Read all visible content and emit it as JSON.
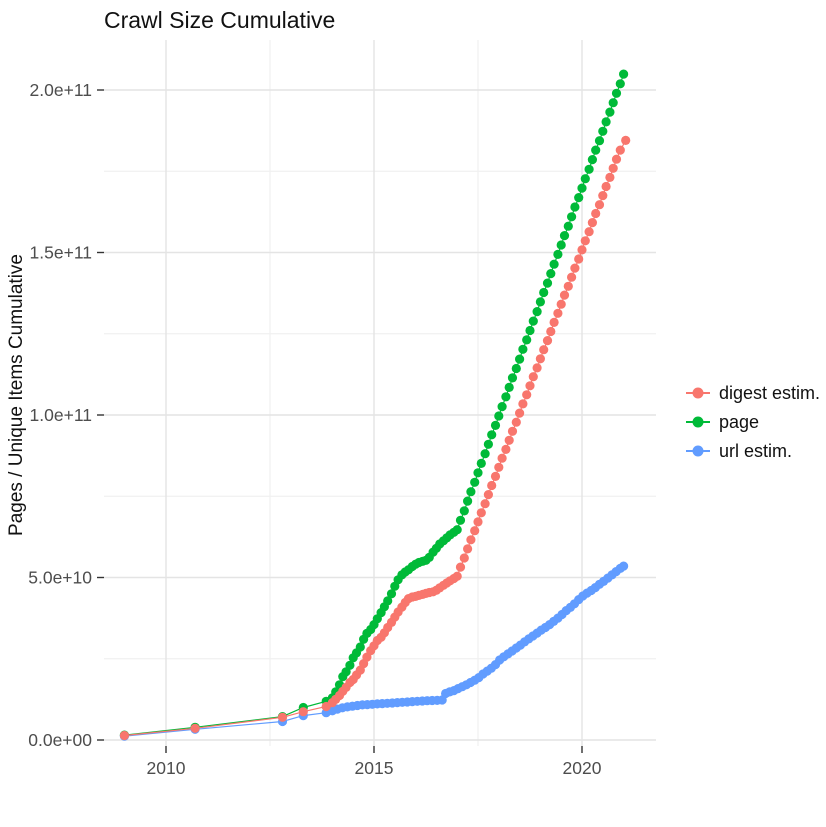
{
  "chart_data": {
    "type": "scatter",
    "marks": "points+lines",
    "title": "Crawl Size Cumulative",
    "xlabel": "",
    "ylabel": "Pages / Unique Items Cumulative",
    "legend_position": "right",
    "grid": true,
    "background": "#FFFFFF",
    "xlim": [
      2008.5,
      2021.8
    ],
    "ylim": [
      0,
      215000000000.0
    ],
    "values_unit": "1e9 (billions)",
    "x_ticks": [
      {
        "v": 2010,
        "label": "2010"
      },
      {
        "v": 2015,
        "label": "2015"
      },
      {
        "v": 2020,
        "label": "2020"
      }
    ],
    "x_minor_ticks": [
      2012.5,
      2017.5
    ],
    "y_ticks": [
      {
        "v": 0,
        "label": "0.0e+00"
      },
      {
        "v": 50,
        "label": "5.0e+10"
      },
      {
        "v": 100,
        "label": "1.0e+11"
      },
      {
        "v": 150,
        "label": "1.5e+11"
      },
      {
        "v": 200,
        "label": "2.0e+11"
      }
    ],
    "y_minor_ticks": [
      25,
      75,
      125,
      175
    ],
    "colors": {
      "grid_major": "#E4E4E4",
      "grid_minor": "#F0F0F0",
      "tick_mark": "#333333",
      "tick_label": "#4D4D4D",
      "text": "#111111"
    },
    "legend_order": [
      "digest estim.",
      "page",
      "url estim."
    ],
    "draw_order": [
      "page",
      "url estim.",
      "digest estim."
    ],
    "series": [
      {
        "name": "digest estim.",
        "color": "#F8766D",
        "points": [
          [
            2009.0,
            1.4
          ],
          [
            2010.7,
            3.6
          ],
          [
            2012.8,
            7.0
          ],
          [
            2013.3,
            8.7
          ],
          [
            2013.85,
            10.3
          ],
          [
            2014.0,
            11.5
          ],
          [
            2014.08,
            12.5
          ],
          [
            2014.17,
            13.7
          ],
          [
            2014.25,
            15.0
          ],
          [
            2014.33,
            16.2
          ],
          [
            2014.42,
            17.7
          ],
          [
            2014.5,
            18.6
          ],
          [
            2014.58,
            20.0
          ],
          [
            2014.67,
            21.5
          ],
          [
            2014.75,
            23.5
          ],
          [
            2014.83,
            25.5
          ],
          [
            2014.92,
            27.5
          ],
          [
            2015.0,
            29.0
          ],
          [
            2015.08,
            30.6
          ],
          [
            2015.17,
            31.6
          ],
          [
            2015.25,
            33.0
          ],
          [
            2015.33,
            34.6
          ],
          [
            2015.42,
            36.2
          ],
          [
            2015.5,
            37.8
          ],
          [
            2015.58,
            39.4
          ],
          [
            2015.67,
            40.9
          ],
          [
            2015.75,
            42.3
          ],
          [
            2015.83,
            43.5
          ],
          [
            2015.92,
            44.0
          ],
          [
            2016.0,
            44.2
          ],
          [
            2016.08,
            44.5
          ],
          [
            2016.17,
            44.8
          ],
          [
            2016.25,
            45.1
          ],
          [
            2016.33,
            45.4
          ],
          [
            2016.42,
            45.6
          ],
          [
            2016.5,
            46.1
          ],
          [
            2016.58,
            46.8
          ],
          [
            2016.67,
            47.6
          ],
          [
            2016.75,
            48.3
          ],
          [
            2016.83,
            49.0
          ],
          [
            2016.92,
            49.7
          ],
          [
            2017.0,
            50.4
          ],
          [
            2017.08,
            53.2
          ],
          [
            2017.17,
            56.0
          ],
          [
            2017.25,
            58.8
          ],
          [
            2017.33,
            61.6
          ],
          [
            2017.42,
            64.4
          ],
          [
            2017.5,
            67.1
          ],
          [
            2017.58,
            69.9
          ],
          [
            2017.67,
            72.7
          ],
          [
            2017.75,
            75.5
          ],
          [
            2017.83,
            78.3
          ],
          [
            2017.92,
            81.1
          ],
          [
            2018.0,
            83.9
          ],
          [
            2018.08,
            86.7
          ],
          [
            2018.17,
            89.4
          ],
          [
            2018.25,
            92.2
          ],
          [
            2018.33,
            95.0
          ],
          [
            2018.42,
            97.8
          ],
          [
            2018.5,
            100.6
          ],
          [
            2018.58,
            103.4
          ],
          [
            2018.67,
            106.2
          ],
          [
            2018.75,
            109.0
          ],
          [
            2018.83,
            111.8
          ],
          [
            2018.92,
            114.5
          ],
          [
            2019.0,
            117.3
          ],
          [
            2019.08,
            120.1
          ],
          [
            2019.17,
            122.9
          ],
          [
            2019.25,
            125.7
          ],
          [
            2019.33,
            128.5
          ],
          [
            2019.42,
            131.3
          ],
          [
            2019.5,
            134.1
          ],
          [
            2019.58,
            136.9
          ],
          [
            2019.67,
            139.6
          ],
          [
            2019.75,
            142.4
          ],
          [
            2019.83,
            145.2
          ],
          [
            2019.92,
            148.0
          ],
          [
            2020.0,
            150.8
          ],
          [
            2020.08,
            153.6
          ],
          [
            2020.17,
            156.4
          ],
          [
            2020.25,
            159.2
          ],
          [
            2020.33,
            162.0
          ],
          [
            2020.42,
            164.7
          ],
          [
            2020.5,
            167.5
          ],
          [
            2020.58,
            170.3
          ],
          [
            2020.67,
            173.1
          ],
          [
            2020.75,
            175.9
          ],
          [
            2020.83,
            178.7
          ],
          [
            2020.92,
            181.5
          ],
          [
            2021.05,
            184.5
          ]
        ]
      },
      {
        "name": "page",
        "color": "#00BA38",
        "points": [
          [
            2009.0,
            1.5
          ],
          [
            2010.7,
            3.9
          ],
          [
            2012.8,
            7.2
          ],
          [
            2013.3,
            10.0
          ],
          [
            2013.85,
            11.9
          ],
          [
            2014.0,
            13.0
          ],
          [
            2014.08,
            14.8
          ],
          [
            2014.17,
            17.0
          ],
          [
            2014.25,
            19.5
          ],
          [
            2014.33,
            21.0
          ],
          [
            2014.42,
            23.0
          ],
          [
            2014.5,
            25.3
          ],
          [
            2014.58,
            26.8
          ],
          [
            2014.67,
            28.6
          ],
          [
            2014.75,
            31.0
          ],
          [
            2014.83,
            32.8
          ],
          [
            2014.92,
            34.0
          ],
          [
            2015.0,
            35.5
          ],
          [
            2015.08,
            37.3
          ],
          [
            2015.17,
            39.2
          ],
          [
            2015.25,
            41.0
          ],
          [
            2015.33,
            42.8
          ],
          [
            2015.42,
            45.0
          ],
          [
            2015.5,
            47.3
          ],
          [
            2015.58,
            49.3
          ],
          [
            2015.67,
            50.8
          ],
          [
            2015.75,
            51.7
          ],
          [
            2015.83,
            52.4
          ],
          [
            2015.92,
            53.4
          ],
          [
            2016.0,
            54.1
          ],
          [
            2016.08,
            54.6
          ],
          [
            2016.17,
            55.0
          ],
          [
            2016.25,
            55.3
          ],
          [
            2016.33,
            56.2
          ],
          [
            2016.42,
            57.8
          ],
          [
            2016.5,
            59.0
          ],
          [
            2016.58,
            60.3
          ],
          [
            2016.67,
            61.3
          ],
          [
            2016.75,
            62.2
          ],
          [
            2016.83,
            63.1
          ],
          [
            2016.92,
            63.9
          ],
          [
            2017.0,
            64.7
          ],
          [
            2017.08,
            67.6
          ],
          [
            2017.17,
            70.5
          ],
          [
            2017.25,
            73.5
          ],
          [
            2017.33,
            76.4
          ],
          [
            2017.42,
            79.3
          ],
          [
            2017.5,
            82.2
          ],
          [
            2017.58,
            85.1
          ],
          [
            2017.67,
            88.1
          ],
          [
            2017.75,
            91.0
          ],
          [
            2017.83,
            93.9
          ],
          [
            2017.92,
            96.8
          ],
          [
            2018.0,
            99.7
          ],
          [
            2018.08,
            102.6
          ],
          [
            2018.17,
            105.6
          ],
          [
            2018.25,
            108.5
          ],
          [
            2018.33,
            111.4
          ],
          [
            2018.42,
            114.3
          ],
          [
            2018.5,
            117.2
          ],
          [
            2018.58,
            120.2
          ],
          [
            2018.67,
            123.1
          ],
          [
            2018.75,
            126.0
          ],
          [
            2018.83,
            128.9
          ],
          [
            2018.92,
            131.8
          ],
          [
            2019.0,
            134.8
          ],
          [
            2019.08,
            137.7
          ],
          [
            2019.17,
            140.6
          ],
          [
            2019.25,
            143.5
          ],
          [
            2019.33,
            146.4
          ],
          [
            2019.42,
            149.4
          ],
          [
            2019.5,
            152.3
          ],
          [
            2019.58,
            155.2
          ],
          [
            2019.67,
            158.1
          ],
          [
            2019.75,
            161.0
          ],
          [
            2019.83,
            164.0
          ],
          [
            2019.92,
            166.9
          ],
          [
            2020.0,
            169.8
          ],
          [
            2020.08,
            172.7
          ],
          [
            2020.17,
            175.6
          ],
          [
            2020.25,
            178.6
          ],
          [
            2020.33,
            181.5
          ],
          [
            2020.42,
            184.4
          ],
          [
            2020.5,
            187.3
          ],
          [
            2020.58,
            190.2
          ],
          [
            2020.67,
            193.2
          ],
          [
            2020.75,
            196.1
          ],
          [
            2020.83,
            199.0
          ],
          [
            2020.92,
            201.9
          ],
          [
            2021.0,
            204.9
          ]
        ]
      },
      {
        "name": "url estim.",
        "color": "#619CFF",
        "points": [
          [
            2009.0,
            1.2
          ],
          [
            2010.7,
            3.3
          ],
          [
            2012.8,
            5.7
          ],
          [
            2013.3,
            7.5
          ],
          [
            2013.85,
            8.4
          ],
          [
            2014.0,
            9.0
          ],
          [
            2014.12,
            9.5
          ],
          [
            2014.24,
            9.9
          ],
          [
            2014.36,
            10.2
          ],
          [
            2014.48,
            10.4
          ],
          [
            2014.6,
            10.6
          ],
          [
            2014.72,
            10.8
          ],
          [
            2014.84,
            10.9
          ],
          [
            2014.96,
            11.0
          ],
          [
            2015.08,
            11.1
          ],
          [
            2015.2,
            11.2
          ],
          [
            2015.32,
            11.3
          ],
          [
            2015.44,
            11.4
          ],
          [
            2015.56,
            11.5
          ],
          [
            2015.68,
            11.6
          ],
          [
            2015.8,
            11.7
          ],
          [
            2015.92,
            11.8
          ],
          [
            2016.04,
            11.9
          ],
          [
            2016.16,
            12.0
          ],
          [
            2016.28,
            12.1
          ],
          [
            2016.4,
            12.15
          ],
          [
            2016.52,
            12.2
          ],
          [
            2016.64,
            12.3
          ],
          [
            2016.72,
            14.3
          ],
          [
            2016.82,
            14.8
          ],
          [
            2016.92,
            15.2
          ],
          [
            2017.02,
            15.8
          ],
          [
            2017.12,
            16.4
          ],
          [
            2017.22,
            17.0
          ],
          [
            2017.32,
            17.7
          ],
          [
            2017.42,
            18.4
          ],
          [
            2017.52,
            19.2
          ],
          [
            2017.62,
            20.3
          ],
          [
            2017.72,
            21.2
          ],
          [
            2017.82,
            22.1
          ],
          [
            2017.92,
            23.2
          ],
          [
            2018.02,
            24.6
          ],
          [
            2018.12,
            25.6
          ],
          [
            2018.22,
            26.5
          ],
          [
            2018.32,
            27.4
          ],
          [
            2018.42,
            28.3
          ],
          [
            2018.52,
            29.2
          ],
          [
            2018.62,
            30.2
          ],
          [
            2018.72,
            31.1
          ],
          [
            2018.82,
            32.0
          ],
          [
            2018.92,
            32.9
          ],
          [
            2019.02,
            33.8
          ],
          [
            2019.12,
            34.6
          ],
          [
            2019.22,
            35.5
          ],
          [
            2019.32,
            36.5
          ],
          [
            2019.42,
            37.5
          ],
          [
            2019.52,
            38.6
          ],
          [
            2019.62,
            39.8
          ],
          [
            2019.72,
            40.8
          ],
          [
            2019.82,
            41.9
          ],
          [
            2019.92,
            43.2
          ],
          [
            2020.02,
            44.3
          ],
          [
            2020.12,
            45.2
          ],
          [
            2020.22,
            46.0
          ],
          [
            2020.32,
            46.9
          ],
          [
            2020.42,
            47.9
          ],
          [
            2020.52,
            48.8
          ],
          [
            2020.62,
            49.8
          ],
          [
            2020.72,
            50.8
          ],
          [
            2020.82,
            51.8
          ],
          [
            2020.92,
            52.8
          ],
          [
            2021.0,
            53.5
          ]
        ]
      }
    ]
  }
}
